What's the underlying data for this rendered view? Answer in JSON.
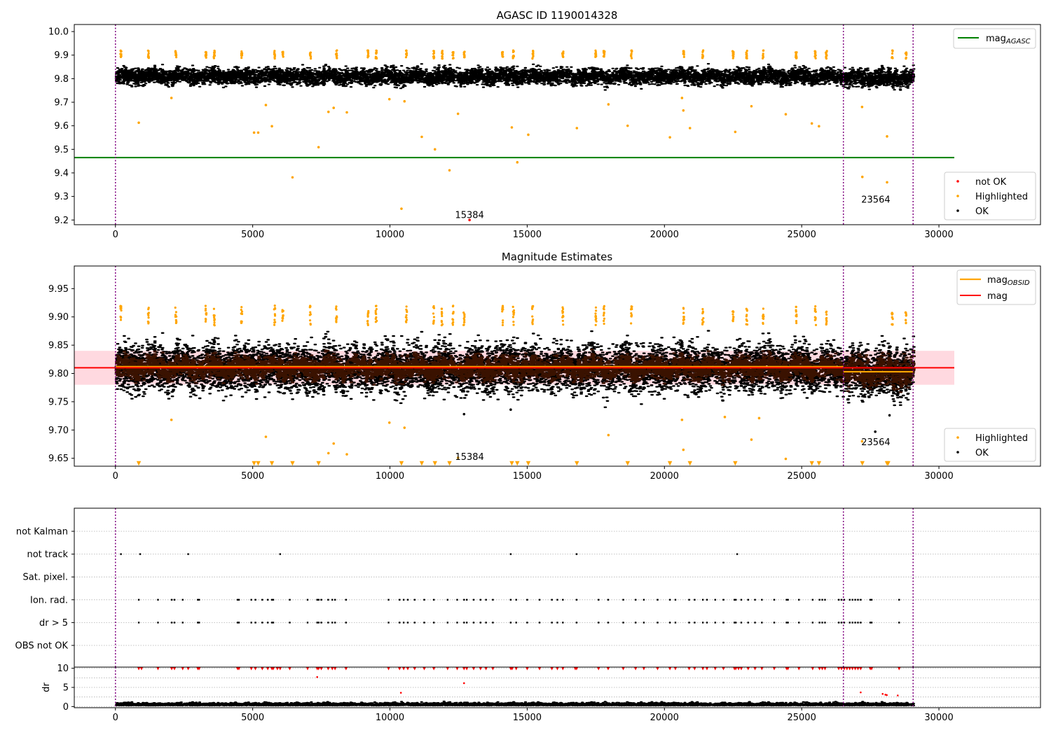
{
  "chart_data": [
    {
      "type": "scatter",
      "title": "AGASC ID 1190014328",
      "xlabel": "",
      "ylabel": "",
      "xlim": [
        -1500,
        33700
      ],
      "ylim": [
        9.18,
        10.03
      ],
      "xticks": [
        0,
        5000,
        10000,
        15000,
        20000,
        25000,
        30000
      ],
      "yticks": [
        9.2,
        9.3,
        9.4,
        9.5,
        9.6,
        9.7,
        9.8,
        9.9,
        10.0
      ],
      "ytick_labels": [
        "9.2",
        "9.3",
        "9.4",
        "9.5",
        "9.6",
        "9.7",
        "9.8",
        "9.9",
        "10.0"
      ],
      "vlines": [
        0,
        26520,
        29060
      ],
      "hline": {
        "name": "mag_AGASC",
        "y": 9.465,
        "x_range": [
          -1500,
          30560
        ],
        "color": "#008000"
      },
      "ok_band": {
        "x_range": [
          0,
          29060
        ],
        "center": 9.81,
        "half_width": 0.03
      },
      "highlighted_points": [
        [
          850,
          9.613
        ],
        [
          2040,
          9.718
        ],
        [
          5050,
          9.571
        ],
        [
          5200,
          9.571
        ],
        [
          5480,
          9.688
        ],
        [
          5700,
          9.598
        ],
        [
          6450,
          9.381
        ],
        [
          7400,
          9.509
        ],
        [
          7760,
          9.659
        ],
        [
          7950,
          9.676
        ],
        [
          8430,
          9.657
        ],
        [
          9980,
          9.713
        ],
        [
          10420,
          9.248
        ],
        [
          10530,
          9.704
        ],
        [
          11160,
          9.553
        ],
        [
          11640,
          9.5
        ],
        [
          12170,
          9.411
        ],
        [
          12480,
          9.651
        ],
        [
          14440,
          9.593
        ],
        [
          14640,
          9.445
        ],
        [
          15040,
          9.562
        ],
        [
          16810,
          9.59
        ],
        [
          17960,
          9.691
        ],
        [
          18660,
          9.6
        ],
        [
          20200,
          9.551
        ],
        [
          20640,
          9.718
        ],
        [
          20690,
          9.665
        ],
        [
          20930,
          9.59
        ],
        [
          22580,
          9.574
        ],
        [
          23170,
          9.683
        ],
        [
          24420,
          9.649
        ],
        [
          25370,
          9.61
        ],
        [
          25630,
          9.598
        ],
        [
          27200,
          9.68
        ],
        [
          27210,
          9.383
        ],
        [
          28110,
          9.555
        ],
        [
          28110,
          9.36
        ]
      ],
      "highlighted_clusters": [
        200,
        1200,
        2200,
        3300,
        3600,
        4600,
        5800,
        6100,
        7100,
        8050,
        9200,
        9500,
        10600,
        11600,
        11900,
        12300,
        12700,
        14100,
        14500,
        15200,
        16300,
        17500,
        17800,
        18800,
        20700,
        21400,
        22500,
        23000,
        23600,
        24800,
        25500,
        25900,
        28300,
        28800
      ],
      "annotations": [
        {
          "text": "15384",
          "x": 12900,
          "y": 9.2
        },
        {
          "text": "23564",
          "x": 27700,
          "y": 9.265
        }
      ],
      "not_ok_points": [
        [
          12900,
          9.2
        ]
      ],
      "legend": [
        {
          "label": "mag",
          "sub": "AGASC",
          "color": "#008000",
          "kind": "line",
          "position": "top-right"
        },
        {
          "label": "not OK",
          "color": "#ff0000",
          "kind": "dot",
          "position": "bottom-right"
        },
        {
          "label": "Highlighted",
          "color": "#ffa500",
          "kind": "dot",
          "position": "bottom-right"
        },
        {
          "label": "OK",
          "color": "#000000",
          "kind": "dot",
          "position": "bottom-right"
        }
      ],
      "grid": false
    },
    {
      "type": "scatter",
      "title": "Magnitude Estimates",
      "xlabel": "",
      "ylabel": "",
      "xlim": [
        -1500,
        33700
      ],
      "ylim": [
        9.636,
        9.99
      ],
      "xticks": [
        0,
        5000,
        10000,
        15000,
        20000,
        25000,
        30000
      ],
      "yticks": [
        9.65,
        9.7,
        9.75,
        9.8,
        9.85,
        9.9,
        9.95
      ],
      "ytick_labels": [
        "9.65",
        "9.70",
        "9.75",
        "9.80",
        "9.85",
        "9.90",
        "9.95"
      ],
      "vlines": [
        0,
        26520,
        29060
      ],
      "mag_line": {
        "name": "mag",
        "y": 9.81,
        "x_range": [
          -1500,
          30560
        ],
        "color": "#ff0000"
      },
      "mag_band": {
        "y_range": [
          9.78,
          9.84
        ],
        "x_range": [
          -1500,
          30560
        ],
        "color": "#ffc0cb"
      },
      "mag_obsid_segments": [
        {
          "x_range": [
            0,
            26520
          ],
          "y": 9.812
        },
        {
          "x_range": [
            26520,
            29060
          ],
          "y": 9.803
        }
      ],
      "highlighted_points": [
        [
          2040,
          9.718
        ],
        [
          5480,
          9.688
        ],
        [
          7760,
          9.659
        ],
        [
          7950,
          9.676
        ],
        [
          8430,
          9.657
        ],
        [
          9980,
          9.713
        ],
        [
          10530,
          9.704
        ],
        [
          12480,
          9.651
        ],
        [
          17960,
          9.691
        ],
        [
          20640,
          9.718
        ],
        [
          20690,
          9.665
        ],
        [
          22200,
          9.723
        ],
        [
          23170,
          9.683
        ],
        [
          23450,
          9.721
        ],
        [
          24420,
          9.649
        ],
        [
          27200,
          9.68
        ]
      ],
      "ok_outliers": [
        [
          12700,
          9.728
        ],
        [
          14400,
          9.736
        ],
        [
          27680,
          9.697
        ],
        [
          28200,
          9.726
        ]
      ],
      "clipped_markers": [
        850,
        5050,
        5200,
        5700,
        6450,
        7400,
        10420,
        11160,
        11640,
        12170,
        14440,
        14640,
        15040,
        16810,
        18660,
        20200,
        20930,
        22580,
        25370,
        25630,
        27210,
        28110,
        28150
      ],
      "annotations": [
        {
          "text": "15384",
          "x": 12900,
          "y": 9.652
        },
        {
          "text": "23564",
          "x": 27700,
          "y": 9.678
        }
      ],
      "legend": [
        {
          "label": "mag",
          "sub": "OBSID",
          "color": "#ffa500",
          "kind": "line",
          "position": "top-right"
        },
        {
          "label": "mag",
          "color": "#ff0000",
          "kind": "line",
          "position": "top-right"
        },
        {
          "label": "Highlighted",
          "color": "#ffa500",
          "kind": "dot",
          "position": "bottom-right"
        },
        {
          "label": "OK",
          "color": "#000000",
          "kind": "dot",
          "position": "bottom-right"
        }
      ],
      "grid": false
    },
    {
      "type": "scatter",
      "title": "",
      "xlabel": "",
      "ylabel": "",
      "xlim": [
        -1500,
        33700
      ],
      "xticks": [
        0,
        5000,
        10000,
        15000,
        20000,
        25000,
        30000
      ],
      "categories": [
        "not Kalman",
        "not track",
        "Sat. pixel.",
        "Ion. rad.",
        "dr > 5",
        "OBS not OK"
      ],
      "vlines": [
        0,
        26520,
        29060
      ],
      "flags": {
        "not track": [
          200,
          900,
          2650,
          6000,
          14400,
          16800,
          22650
        ],
        "Ion. rad.": [
          850,
          1550,
          2050,
          2150,
          2450,
          3000,
          3050,
          4450,
          4500,
          4950,
          5100,
          5350,
          5550,
          5700,
          5750,
          6350,
          7000,
          7350,
          7400,
          7500,
          7750,
          7900,
          8000,
          8400,
          9950,
          10350,
          10500,
          10650,
          10900,
          11250,
          11600,
          12100,
          12450,
          12700,
          12800,
          13050,
          13300,
          13500,
          13750,
          14400,
          14600,
          15000,
          15450,
          15900,
          16100,
          16300,
          16800,
          17600,
          17950,
          18500,
          18950,
          19250,
          19750,
          20200,
          20400,
          20900,
          21100,
          21400,
          21550,
          21850,
          22150,
          22550,
          22600,
          22800,
          23050,
          23300,
          23550,
          24000,
          24450,
          24500,
          24900,
          25400,
          25650,
          25750,
          25850,
          26350,
          26450,
          26550,
          26750,
          26850,
          26950,
          27050,
          27150,
          27500,
          27550,
          28550
        ],
        "dr > 5": [
          850,
          1550,
          2050,
          2150,
          2450,
          3000,
          3050,
          4450,
          4500,
          4950,
          5100,
          5350,
          5550,
          5700,
          5750,
          6350,
          7000,
          7350,
          7400,
          7500,
          7750,
          7900,
          8000,
          8400,
          9950,
          10350,
          10500,
          10650,
          10900,
          11250,
          11600,
          12100,
          12450,
          12700,
          12800,
          13050,
          13300,
          13500,
          13750,
          14400,
          14600,
          15000,
          15450,
          15900,
          16100,
          16300,
          16800,
          17600,
          17950,
          18500,
          18950,
          19250,
          19750,
          20200,
          20400,
          20900,
          21100,
          21400,
          21550,
          21850,
          22150,
          22550,
          22600,
          22800,
          23050,
          23300,
          23550,
          24000,
          24450,
          24500,
          24900,
          25400,
          25650,
          25750,
          25850,
          26350,
          26450,
          26550,
          26750,
          26850,
          26950,
          27050,
          27150,
          27500,
          27550,
          28550
        ]
      },
      "grid": true
    },
    {
      "type": "scatter",
      "title": "",
      "xlabel": "",
      "ylabel": "dr",
      "xlim": [
        -1500,
        33700
      ],
      "ylim": [
        -0.3,
        10.3
      ],
      "xticks": [
        0,
        5000,
        10000,
        15000,
        20000,
        25000,
        30000
      ],
      "yticks": [
        0,
        5,
        10
      ],
      "ytick_labels": [
        "0",
        "5",
        "10"
      ],
      "vlines": [
        0,
        26520,
        29060
      ],
      "clipped_markers": [
        850,
        950,
        1550,
        2050,
        2150,
        2450,
        2650,
        3000,
        3050,
        4450,
        4500,
        4950,
        5100,
        5350,
        5550,
        5700,
        5750,
        5900,
        6000,
        6350,
        7000,
        7350,
        7400,
        7500,
        7750,
        7900,
        8000,
        8400,
        9950,
        10350,
        10500,
        10650,
        10900,
        11250,
        11600,
        12100,
        12450,
        12700,
        12800,
        13050,
        13300,
        13500,
        13750,
        14400,
        14450,
        14600,
        15000,
        15450,
        15900,
        16100,
        16300,
        16750,
        16800,
        17600,
        17950,
        18500,
        18950,
        19250,
        19750,
        20200,
        20400,
        20900,
        21100,
        21400,
        21550,
        21850,
        22150,
        22550,
        22600,
        22700,
        22800,
        23050,
        23300,
        23550,
        24000,
        24450,
        24500,
        24900,
        25400,
        25650,
        25750,
        25850,
        26350,
        26450,
        26550,
        26650,
        26750,
        26850,
        26950,
        27050,
        27150,
        27500,
        27550,
        28550
      ],
      "red_points": [
        [
          7350,
          7.7
        ],
        [
          10400,
          3.6
        ],
        [
          12700,
          6.1
        ],
        [
          27150,
          3.7
        ],
        [
          27950,
          3.3
        ],
        [
          28050,
          3.1
        ],
        [
          28100,
          3.0
        ],
        [
          28500,
          2.9
        ]
      ],
      "grid": true
    }
  ]
}
